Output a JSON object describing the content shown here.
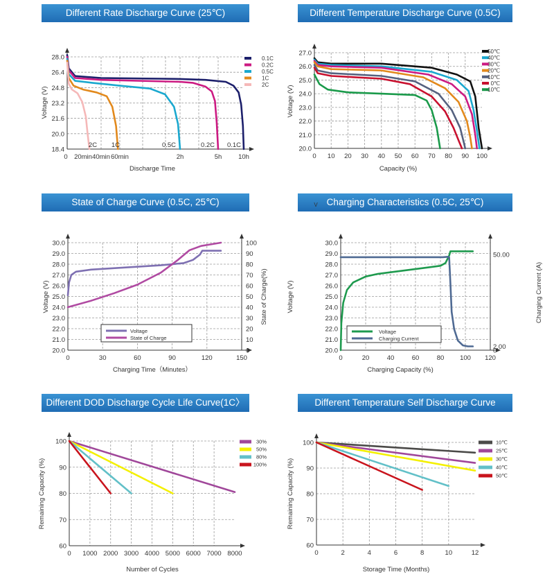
{
  "chart_data": [
    {
      "id": "rate",
      "type": "line",
      "title": "Different Rate Discharge Curve (25℃)",
      "xlabel": "Discharge Time",
      "ylabel": "Voltage (V)",
      "ylim": [
        18.4,
        28.0
      ],
      "yticks": [
        "28.0",
        "26.4",
        "24.8",
        "23.2",
        "21.6",
        "20.0",
        "18.4"
      ],
      "xticks": [
        {
          "x": 0,
          "label": "0"
        },
        {
          "x": 20,
          "label": "20min"
        },
        {
          "x": 40,
          "label": "40min"
        },
        {
          "x": 60,
          "label": "60min"
        },
        {
          "x": 120,
          "label": "2h"
        },
        {
          "x": 300,
          "label": "5h"
        },
        {
          "x": 600,
          "label": "10h"
        }
      ],
      "series": [
        {
          "name": "0.1C",
          "color": "#1c1f6b",
          "end_label": "0.1C",
          "points": [
            [
              0,
              28.2
            ],
            [
              2,
              26.8
            ],
            [
              10,
              26.0
            ],
            [
              40,
              25.8
            ],
            [
              120,
              25.7
            ],
            [
              240,
              25.6
            ],
            [
              390,
              25.4
            ],
            [
              480,
              25.0
            ],
            [
              540,
              24.3
            ],
            [
              570,
              23.0
            ],
            [
              590,
              20.8
            ],
            [
              600,
              18.4
            ]
          ]
        },
        {
          "name": "0.2C",
          "color": "#cc1a82",
          "end_label": "0.2C",
          "points": [
            [
              0,
              28.0
            ],
            [
              2,
              26.6
            ],
            [
              10,
              25.8
            ],
            [
              40,
              25.6
            ],
            [
              120,
              25.4
            ],
            [
              180,
              25.3
            ],
            [
              240,
              24.9
            ],
            [
              270,
              24.4
            ],
            [
              285,
              23.4
            ],
            [
              293,
              21.2
            ],
            [
              300,
              18.4
            ]
          ]
        },
        {
          "name": "0.5C",
          "color": "#1aa8cf",
          "end_label": "0.5C",
          "points": [
            [
              0,
              27.8
            ],
            [
              2,
              26.2
            ],
            [
              10,
              25.5
            ],
            [
              30,
              25.3
            ],
            [
              60,
              25.0
            ],
            [
              90,
              24.7
            ],
            [
              105,
              24.1
            ],
            [
              114,
              22.8
            ],
            [
              118,
              21.0
            ],
            [
              120,
              18.4
            ]
          ]
        },
        {
          "name": "1C",
          "color": "#e2891c",
          "end_label": "1C",
          "points": [
            [
              0,
              27.6
            ],
            [
              2,
              25.8
            ],
            [
              8,
              25.0
            ],
            [
              20,
              24.6
            ],
            [
              35,
              24.3
            ],
            [
              46,
              23.9
            ],
            [
              52,
              22.8
            ],
            [
              56,
              20.8
            ],
            [
              58,
              18.4
            ]
          ]
        },
        {
          "name": "2C",
          "color": "#f5b8b8",
          "end_label": "2C",
          "points": [
            [
              0,
              27.4
            ],
            [
              2,
              25.2
            ],
            [
              6,
              24.6
            ],
            [
              13,
              24.2
            ],
            [
              19,
              23.3
            ],
            [
              23,
              21.8
            ],
            [
              25,
              20.0
            ],
            [
              27,
              18.4
            ]
          ]
        }
      ]
    },
    {
      "id": "temp",
      "type": "line",
      "title": "Different Temperature Discharge  Curve (0.5C)",
      "xlabel": "Capacity (%)",
      "ylabel": "Voltage (V)",
      "xlim": [
        0,
        100
      ],
      "ylim": [
        20.0,
        27.0
      ],
      "yticks": [
        "27.0",
        "26.0",
        "25.0",
        "24.0",
        "23.0",
        "22.0",
        "21.0",
        "20.0"
      ],
      "xticks": [
        "0",
        "10",
        "20",
        "30",
        "40",
        "50",
        "60",
        "70",
        "80",
        "90",
        "100"
      ],
      "series": [
        {
          "name": "50℃",
          "color": "#111111",
          "points": [
            [
              0,
              26.6
            ],
            [
              2,
              26.3
            ],
            [
              10,
              26.2
            ],
            [
              40,
              26.2
            ],
            [
              70,
              25.9
            ],
            [
              85,
              25.4
            ],
            [
              93,
              24.9
            ],
            [
              96,
              23.8
            ],
            [
              98,
              21.5
            ],
            [
              100,
              20.0
            ]
          ]
        },
        {
          "name": "40℃",
          "color": "#1aa8cf",
          "points": [
            [
              0,
              26.5
            ],
            [
              2,
              26.2
            ],
            [
              10,
              26.1
            ],
            [
              40,
              26.0
            ],
            [
              70,
              25.6
            ],
            [
              85,
              25.0
            ],
            [
              92,
              24.2
            ],
            [
              95,
              22.8
            ],
            [
              97,
              21.3
            ],
            [
              98.5,
              20.0
            ]
          ]
        },
        {
          "name": "30℃",
          "color": "#cc1a82",
          "points": [
            [
              0,
              26.4
            ],
            [
              2,
              26.1
            ],
            [
              10,
              26.0
            ],
            [
              40,
              25.9
            ],
            [
              68,
              25.4
            ],
            [
              82,
              24.7
            ],
            [
              90,
              23.8
            ],
            [
              94,
              22.5
            ],
            [
              96,
              21.0
            ],
            [
              97,
              20.0
            ]
          ]
        },
        {
          "name": "20℃",
          "color": "#e2891c",
          "points": [
            [
              0,
              26.3
            ],
            [
              2,
              26.0
            ],
            [
              10,
              25.8
            ],
            [
              40,
              25.7
            ],
            [
              65,
              25.2
            ],
            [
              78,
              24.4
            ],
            [
              86,
              23.4
            ],
            [
              91,
              22.0
            ],
            [
              93,
              20.8
            ],
            [
              94,
              20.0
            ]
          ]
        },
        {
          "name": "10℃",
          "color": "#55617f",
          "points": [
            [
              0,
              26.1
            ],
            [
              2,
              25.7
            ],
            [
              10,
              25.5
            ],
            [
              40,
              25.3
            ],
            [
              60,
              24.9
            ],
            [
              74,
              24.0
            ],
            [
              82,
              22.8
            ],
            [
              87,
              21.5
            ],
            [
              89,
              20.5
            ],
            [
              90,
              20.0
            ]
          ]
        },
        {
          "name": "0℃",
          "color": "#c8102e",
          "points": [
            [
              0,
              25.9
            ],
            [
              2,
              25.5
            ],
            [
              10,
              25.3
            ],
            [
              40,
              25.1
            ],
            [
              57,
              24.7
            ],
            [
              70,
              23.8
            ],
            [
              78,
              22.7
            ],
            [
              83,
              21.5
            ],
            [
              86,
              20.6
            ],
            [
              88,
              20.0
            ]
          ]
        },
        {
          "name": "-10℃",
          "color": "#1a9a4a",
          "points": [
            [
              0,
              25.4
            ],
            [
              3,
              24.7
            ],
            [
              8,
              24.3
            ],
            [
              20,
              24.1
            ],
            [
              40,
              24.0
            ],
            [
              60,
              23.9
            ],
            [
              67,
              23.5
            ],
            [
              70,
              22.8
            ],
            [
              73,
              21.5
            ],
            [
              75,
              20.0
            ]
          ]
        }
      ]
    },
    {
      "id": "soc",
      "type": "line",
      "title": "State of Charge  Curve  (0.5C, 25℃)",
      "xlabel": "Charging Time（Minutes）",
      "ylabel": "Voltage (V)",
      "y2label": "State of Charge(%)",
      "xlim": [
        0,
        150
      ],
      "ylim": [
        20.0,
        30.0
      ],
      "y2lim": [
        0,
        100
      ],
      "yticks": [
        "30.0",
        "29.0",
        "28.0",
        "27.0",
        "26.0",
        "25.0",
        "24.0",
        "23.0",
        "22.0",
        "21.0",
        "20.0"
      ],
      "y2ticks": [
        "100",
        "90",
        "80",
        "70",
        "60",
        "50",
        "40",
        "30",
        "20",
        "10",
        "0"
      ],
      "xticks": [
        "0",
        "30",
        "60",
        "90",
        "120",
        "150"
      ],
      "legend": [
        "Voltage",
        "State of Charge"
      ],
      "series": [
        {
          "name": "Voltage",
          "color": "#7e70b2",
          "axis": "y",
          "points": [
            [
              0,
              25.1
            ],
            [
              1,
              26.3
            ],
            [
              3,
              27.0
            ],
            [
              7,
              27.3
            ],
            [
              20,
              27.5
            ],
            [
              50,
              27.7
            ],
            [
              80,
              27.9
            ],
            [
              100,
              28.1
            ],
            [
              108,
              28.4
            ],
            [
              114,
              28.9
            ],
            [
              116,
              29.25
            ],
            [
              132,
              29.25
            ]
          ]
        },
        {
          "name": "State of Charge",
          "color": "#b04aa2",
          "axis": "y2",
          "points": [
            [
              0,
              40
            ],
            [
              20,
              46
            ],
            [
              40,
              53
            ],
            [
              60,
              61
            ],
            [
              80,
              72
            ],
            [
              95,
              84
            ],
            [
              105,
              93
            ],
            [
              115,
              97
            ],
            [
              132,
              100
            ]
          ]
        }
      ]
    },
    {
      "id": "chg",
      "type": "line",
      "title": "Charging Characteristics (0.5C, 25℃)",
      "xlabel": "Charging Capacity (%)",
      "ylabel": "Voltage (V)",
      "y2label": "Charging Current (A)",
      "xlim": [
        0,
        120
      ],
      "ylim": [
        20.0,
        30.0
      ],
      "yticks": [
        "30.0",
        "29.0",
        "28.0",
        "27.0",
        "26.0",
        "25.0",
        "24.0",
        "23.0",
        "22.0",
        "21.0",
        "20.0"
      ],
      "xticks": [
        "0",
        "20",
        "40",
        "60",
        "80",
        "100",
        "120"
      ],
      "y2ticks": [
        {
          "value": 50,
          "label": "50.00"
        },
        {
          "value": 2,
          "label": "2.00"
        },
        {
          "value": 0,
          "label": "0"
        }
      ],
      "legend": [
        "Voltage",
        "Charging Current"
      ],
      "v_marker": "V",
      "series": [
        {
          "name": "Voltage",
          "color": "#1e9a4e",
          "axis": "y",
          "points": [
            [
              0,
              20.0
            ],
            [
              0.5,
              22.5
            ],
            [
              2,
              24.4
            ],
            [
              5,
              25.6
            ],
            [
              10,
              26.3
            ],
            [
              20,
              26.85
            ],
            [
              30,
              27.1
            ],
            [
              50,
              27.4
            ],
            [
              70,
              27.7
            ],
            [
              80,
              27.85
            ],
            [
              84,
              28.1
            ],
            [
              87,
              28.8
            ],
            [
              88,
              29.2
            ],
            [
              106,
              29.2
            ]
          ]
        },
        {
          "name": "Charging Current",
          "color": "#4f6a93",
          "axis": "y2",
          "points": [
            [
              0,
              48.6
            ],
            [
              40,
              48.6
            ],
            [
              82,
              48.6
            ],
            [
              86,
              48.8
            ],
            [
              87,
              48.5
            ],
            [
              88,
              35
            ],
            [
              89,
              20
            ],
            [
              91,
              11
            ],
            [
              94,
              5
            ],
            [
              98,
              2.5
            ],
            [
              102,
              2.0
            ],
            [
              106,
              2.0
            ]
          ]
        }
      ]
    },
    {
      "id": "dod",
      "type": "line",
      "title": "Different DOD Discharge Cycle Life Curve(1C〉",
      "xlabel": "Number of Cycles",
      "ylabel": "Remaining Capacity (%)",
      "xlim": [
        0,
        8000
      ],
      "ylim": [
        60,
        100
      ],
      "yticks": [
        "100",
        "90",
        "80",
        "70",
        "60"
      ],
      "xticks": [
        "0",
        "1000",
        "2000",
        "3000",
        "4000",
        "5000",
        "6000",
        "7000",
        "8000"
      ],
      "series": [
        {
          "name": "30%",
          "color": "#a0479a",
          "points": [
            [
              0,
              100
            ],
            [
              8000,
              80.5
            ]
          ]
        },
        {
          "name": "50%",
          "color": "#f4f000",
          "points": [
            [
              0,
              100
            ],
            [
              5000,
              80
            ]
          ]
        },
        {
          "name": "80%",
          "color": "#62c0c8",
          "points": [
            [
              0,
              100
            ],
            [
              3000,
              80
            ]
          ]
        },
        {
          "name": "100%",
          "color": "#c9141d",
          "points": [
            [
              0,
              100
            ],
            [
              2000,
              80
            ]
          ]
        }
      ]
    },
    {
      "id": "self",
      "type": "line",
      "title": "Different Temperature Self Discharge Curve",
      "xlabel": "Storage Time (Months)",
      "ylabel": "Remaining Capacity (%)",
      "xlim": [
        0,
        12
      ],
      "ylim": [
        60,
        100
      ],
      "yticks": [
        "100",
        "90",
        "80",
        "70",
        "60"
      ],
      "xticks": [
        "0",
        "2",
        "4",
        "6",
        "8",
        "10",
        "12"
      ],
      "series": [
        {
          "name": "10℃",
          "color": "#4b4a48",
          "points": [
            [
              0,
              100
            ],
            [
              12,
              96
            ]
          ]
        },
        {
          "name": "25℃",
          "color": "#a0479a",
          "points": [
            [
              0,
              100
            ],
            [
              12,
              92
            ]
          ]
        },
        {
          "name": "30℃",
          "color": "#f4f000",
          "points": [
            [
              0,
              100
            ],
            [
              12,
              89
            ]
          ]
        },
        {
          "name": "40℃",
          "color": "#62c0c8",
          "points": [
            [
              0,
              100
            ],
            [
              10,
              83
            ]
          ]
        },
        {
          "name": "50℃",
          "color": "#c9141d",
          "points": [
            [
              0,
              100
            ],
            [
              8,
              81.5
            ]
          ]
        }
      ]
    }
  ]
}
